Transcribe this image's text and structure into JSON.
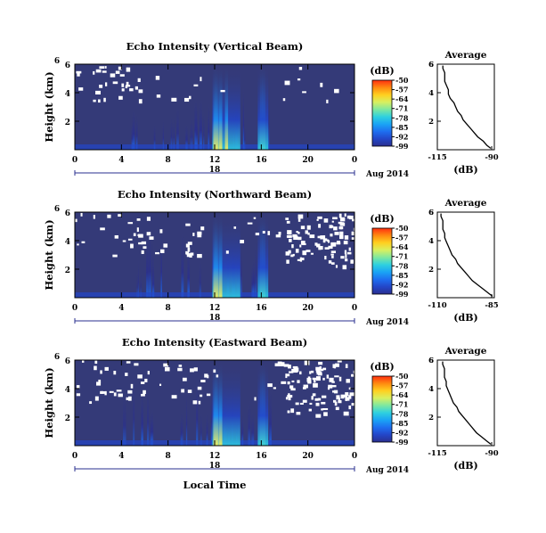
{
  "colors": {
    "background": "#343a78",
    "colorbar": [
      "#2a2f8f",
      "#2346c8",
      "#1e6ef0",
      "#1aa3f5",
      "#2ed0e0",
      "#7ee8a0",
      "#d8f060",
      "#ffd020",
      "#ff8a10",
      "#ff3010"
    ]
  },
  "colorbar_title": "(dB)",
  "colorbar_ticks": [
    "-50",
    "-57",
    "-64",
    "-71",
    "-78",
    "-85",
    "-92",
    "-99"
  ],
  "average_title": "Average",
  "average_xlabel": "(dB)",
  "date_label": "Aug 2014",
  "xlabel": "Local Time",
  "ylabel": "Height (km)",
  "chart_data": [
    {
      "type": "heatmap",
      "title": "Echo Intensity (Vertical Beam)",
      "xlabel": "",
      "ylabel": "Height (km)",
      "x_ticks": [
        "0",
        "4",
        "8",
        "12",
        "16",
        "20",
        "0"
      ],
      "x_day": "18",
      "y_ticks": [
        "2",
        "4",
        "6"
      ],
      "xlim": [
        0,
        24
      ],
      "ylim": [
        0,
        6
      ],
      "colorbar": {
        "label": "(dB)",
        "range": [
          -99,
          -50
        ],
        "ticks": [
          -50,
          -57,
          -64,
          -71,
          -78,
          -85,
          -92,
          -99
        ]
      },
      "intense_hours": [
        12.0,
        12.2,
        12.5,
        13.0,
        16.0,
        16.2
      ],
      "average_profile": {
        "title": "Average",
        "xlabel": "(dB)",
        "x_ticks": [
          "-115",
          "-90"
        ],
        "xlim": [
          -118,
          -87
        ],
        "y_ticks": [
          "2",
          "4",
          "6"
        ],
        "height_km": [
          0.1,
          0.3,
          0.6,
          0.9,
          1.2,
          1.5,
          1.8,
          2.1,
          2.4,
          2.7,
          3.0,
          3.3,
          3.6,
          3.9,
          4.2,
          4.5,
          4.8,
          5.1,
          5.4,
          5.7,
          5.9
        ],
        "db": [
          -89,
          -91,
          -93,
          -96,
          -98,
          -100,
          -102,
          -104,
          -105,
          -107,
          -108,
          -109,
          -111,
          -112,
          -112,
          -113,
          -114,
          -114,
          -114,
          -115,
          -115
        ]
      }
    },
    {
      "type": "heatmap",
      "title": "Echo Intensity (Northward Beam)",
      "xlabel": "",
      "ylabel": "Height (km)",
      "x_ticks": [
        "0",
        "4",
        "8",
        "12",
        "16",
        "20",
        "0"
      ],
      "x_day": "18",
      "y_ticks": [
        "2",
        "4",
        "6"
      ],
      "xlim": [
        0,
        24
      ],
      "ylim": [
        0,
        6
      ],
      "colorbar": {
        "label": "(dB)",
        "range": [
          -99,
          -50
        ],
        "ticks": [
          -50,
          -57,
          -64,
          -71,
          -78,
          -85,
          -92,
          -99
        ]
      },
      "intense_hours": [
        12.0,
        12.2,
        12.5,
        16.0,
        16.2
      ],
      "average_profile": {
        "title": "Average",
        "xlabel": "(dB)",
        "x_ticks": [
          "-110",
          "-85"
        ],
        "xlim": [
          -114,
          -83
        ],
        "y_ticks": [
          "2",
          "4",
          "6"
        ],
        "height_km": [
          0.1,
          0.3,
          0.6,
          0.9,
          1.2,
          1.5,
          1.8,
          2.1,
          2.4,
          2.7,
          3.0,
          3.3,
          3.6,
          3.9,
          4.2,
          4.5,
          4.8,
          5.1,
          5.4,
          5.7,
          5.9
        ],
        "db": [
          -84,
          -86,
          -89,
          -92,
          -95,
          -97,
          -99,
          -101,
          -103,
          -104,
          -106,
          -107,
          -108,
          -109,
          -110,
          -110,
          -111,
          -111,
          -111,
          -112,
          -112
        ]
      }
    },
    {
      "type": "heatmap",
      "title": "Echo Intensity (Eastward Beam)",
      "xlabel": "Local Time",
      "ylabel": "Height (km)",
      "x_ticks": [
        "0",
        "4",
        "8",
        "12",
        "16",
        "20",
        "0"
      ],
      "x_day": "18",
      "y_ticks": [
        "2",
        "4",
        "6"
      ],
      "xlim": [
        0,
        24
      ],
      "ylim": [
        0,
        6
      ],
      "colorbar": {
        "label": "(dB)",
        "range": [
          -99,
          -50
        ],
        "ticks": [
          -50,
          -57,
          -64,
          -71,
          -78,
          -85,
          -92,
          -99
        ]
      },
      "intense_hours": [
        12.0,
        12.2,
        12.5,
        16.0,
        16.2
      ],
      "average_profile": {
        "title": "Average",
        "xlabel": "(dB)",
        "x_ticks": [
          "-115",
          "-90"
        ],
        "xlim": [
          -119,
          -87
        ],
        "y_ticks": [
          "2",
          "4",
          "6"
        ],
        "height_km": [
          0.1,
          0.3,
          0.6,
          0.9,
          1.2,
          1.5,
          1.8,
          2.1,
          2.4,
          2.7,
          3.0,
          3.3,
          3.6,
          3.9,
          4.2,
          4.5,
          4.8,
          5.1,
          5.4,
          5.7,
          5.9
        ],
        "db": [
          -89,
          -91,
          -94,
          -97,
          -99,
          -101,
          -103,
          -105,
          -107,
          -108,
          -110,
          -111,
          -112,
          -113,
          -114,
          -114,
          -115,
          -115,
          -115,
          -116,
          -116
        ]
      }
    }
  ]
}
